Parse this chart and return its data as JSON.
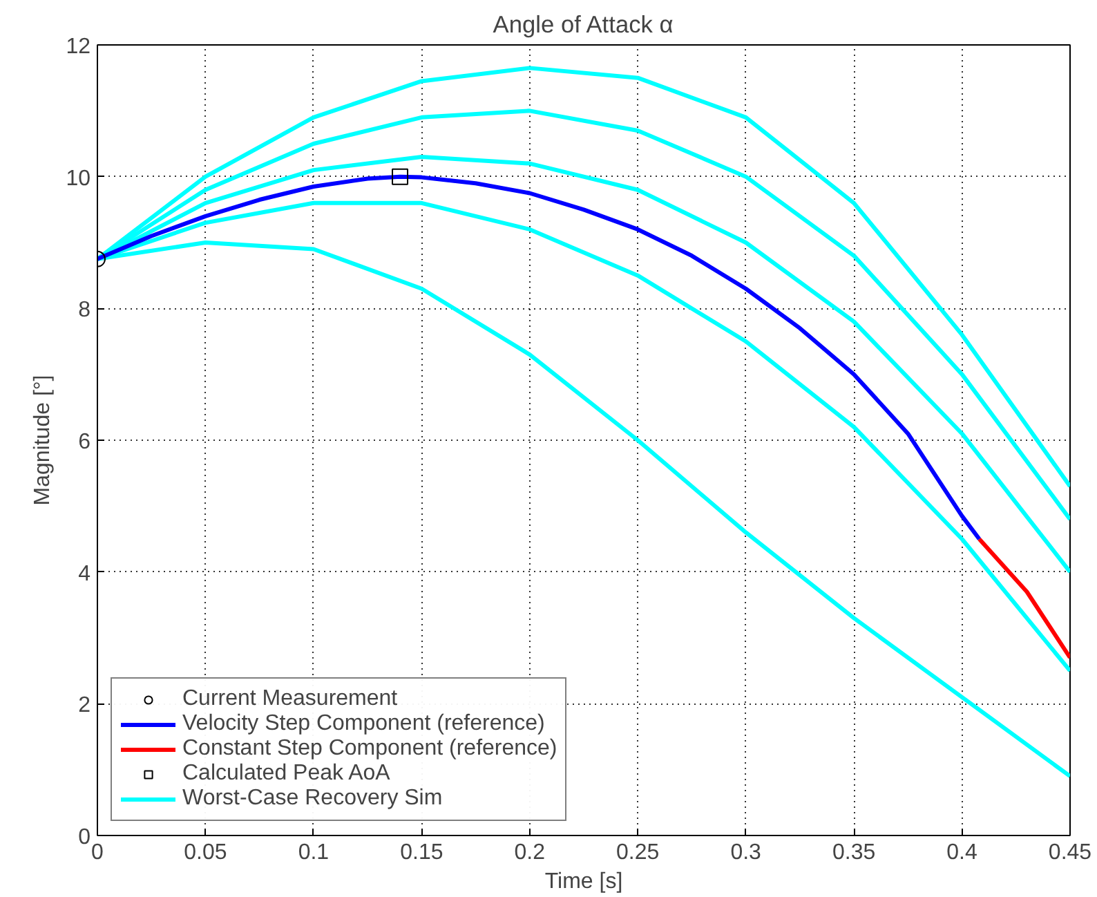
{
  "chart_data": {
    "type": "line",
    "title": "Angle of Attack α",
    "xlabel": "Time [s]",
    "ylabel": "Magnitude [°]",
    "xlim": [
      0,
      0.45
    ],
    "ylim": [
      0,
      12
    ],
    "xticks": [
      0,
      0.05,
      0.1,
      0.15,
      0.2,
      0.25,
      0.3,
      0.35,
      0.4,
      0.45
    ],
    "yticks": [
      0,
      2,
      4,
      6,
      8,
      10,
      12
    ],
    "grid": true,
    "legend": "bottom left",
    "line_style": "solid",
    "series": [
      {
        "name": "Current Measurement",
        "type": "scatter",
        "marker": "circle",
        "color": "#000000",
        "x": [
          0
        ],
        "values": [
          8.75
        ]
      },
      {
        "name": "Velocity Step Component (reference)",
        "color": "#0000ff",
        "x": [
          0,
          0.025,
          0.05,
          0.075,
          0.1,
          0.125,
          0.14,
          0.15,
          0.175,
          0.2,
          0.225,
          0.25,
          0.275,
          0.3,
          0.325,
          0.35,
          0.375,
          0.4,
          0.408
        ],
        "values": [
          8.75,
          9.1,
          9.4,
          9.65,
          9.85,
          9.97,
          10.0,
          9.99,
          9.9,
          9.75,
          9.5,
          9.2,
          8.8,
          8.3,
          7.7,
          7.0,
          6.1,
          4.85,
          4.5
        ]
      },
      {
        "name": "Constant Step Component (reference)",
        "color": "#ff0000",
        "x": [
          0.408,
          0.43,
          0.45
        ],
        "values": [
          4.5,
          3.7,
          2.7
        ]
      },
      {
        "name": "Calculated Peak AoA",
        "type": "scatter",
        "marker": "square",
        "color": "#000000",
        "x": [
          0.14
        ],
        "values": [
          10.0
        ]
      },
      {
        "name": "Worst-Case Recovery Sim",
        "color": "#00ffff",
        "x": [
          0,
          0.05,
          0.1,
          0.15,
          0.2,
          0.25,
          0.3,
          0.35,
          0.4,
          0.45
        ],
        "values": [
          8.75,
          10.0,
          10.9,
          11.45,
          11.65,
          11.5,
          10.9,
          9.6,
          7.6,
          5.3
        ]
      },
      {
        "color": "#00ffff",
        "x": [
          0,
          0.05,
          0.1,
          0.15,
          0.2,
          0.25,
          0.3,
          0.35,
          0.4,
          0.45
        ],
        "values": [
          8.75,
          9.8,
          10.5,
          10.9,
          11.0,
          10.7,
          10.0,
          8.8,
          7.0,
          4.8
        ]
      },
      {
        "color": "#00ffff",
        "x": [
          0,
          0.05,
          0.1,
          0.15,
          0.2,
          0.25,
          0.3,
          0.35,
          0.4,
          0.45
        ],
        "values": [
          8.75,
          9.6,
          10.1,
          10.3,
          10.2,
          9.8,
          9.0,
          7.8,
          6.1,
          4.0
        ]
      },
      {
        "color": "#00ffff",
        "x": [
          0,
          0.05,
          0.1,
          0.15,
          0.2,
          0.25,
          0.3,
          0.35,
          0.4,
          0.45
        ],
        "values": [
          8.75,
          9.3,
          9.6,
          9.6,
          9.2,
          8.5,
          7.5,
          6.2,
          4.5,
          2.5
        ]
      },
      {
        "color": "#00ffff",
        "x": [
          0,
          0.05,
          0.1,
          0.15,
          0.2,
          0.25,
          0.3,
          0.35,
          0.4,
          0.45
        ],
        "values": [
          8.75,
          9.0,
          8.9,
          8.3,
          7.3,
          6.0,
          4.6,
          3.3,
          2.1,
          0.9
        ]
      }
    ]
  }
}
